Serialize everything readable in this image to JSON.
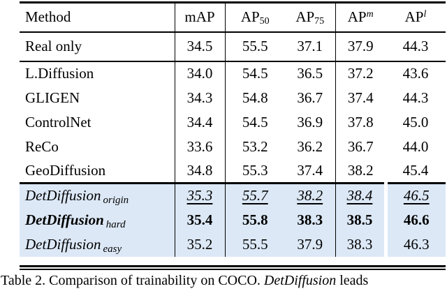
{
  "table": {
    "highlight_bg": "#dce8f6",
    "header": {
      "method": "Method",
      "cols": [
        {
          "main": "mAP"
        },
        {
          "main": "AP",
          "sub": "50"
        },
        {
          "main": "AP",
          "sub": "75"
        },
        {
          "main": "AP",
          "sup": "m"
        },
        {
          "main": "AP",
          "sup": "l"
        }
      ]
    },
    "rows": [
      {
        "method": "Real only",
        "values": [
          "34.5",
          "55.5",
          "37.1",
          "37.9",
          "44.3"
        ]
      },
      {
        "method": "L.Diffusion",
        "values": [
          "34.0",
          "54.5",
          "36.5",
          "37.2",
          "43.6"
        ]
      },
      {
        "method": "GLIGEN",
        "values": [
          "34.3",
          "54.8",
          "36.7",
          "37.4",
          "44.3"
        ]
      },
      {
        "method": "ControlNet",
        "values": [
          "34.4",
          "54.5",
          "36.9",
          "37.8",
          "45.0"
        ]
      },
      {
        "method": "ReCo",
        "values": [
          "33.6",
          "53.2",
          "36.2",
          "36.7",
          "44.0"
        ]
      },
      {
        "method": "GeoDiffusion",
        "values": [
          "34.8",
          "55.3",
          "37.4",
          "38.2",
          "45.4"
        ]
      },
      {
        "method": "DetDiffusion",
        "method_sub": "origin",
        "values": [
          "35.3",
          "55.7",
          "38.2",
          "38.4",
          "46.5"
        ]
      },
      {
        "method": "DetDiffusion",
        "method_sub": "hard",
        "values": [
          "35.4",
          "55.8",
          "38.3",
          "38.5",
          "46.6"
        ]
      },
      {
        "method": "DetDiffusion",
        "method_sub": "easy",
        "values": [
          "35.2",
          "55.5",
          "37.9",
          "38.3",
          "46.3"
        ]
      }
    ]
  },
  "caption": {
    "prefix": "Table 2. Comparison of trainability on COCO. ",
    "italic": "DetDiffusion",
    "suffix": " leads"
  }
}
